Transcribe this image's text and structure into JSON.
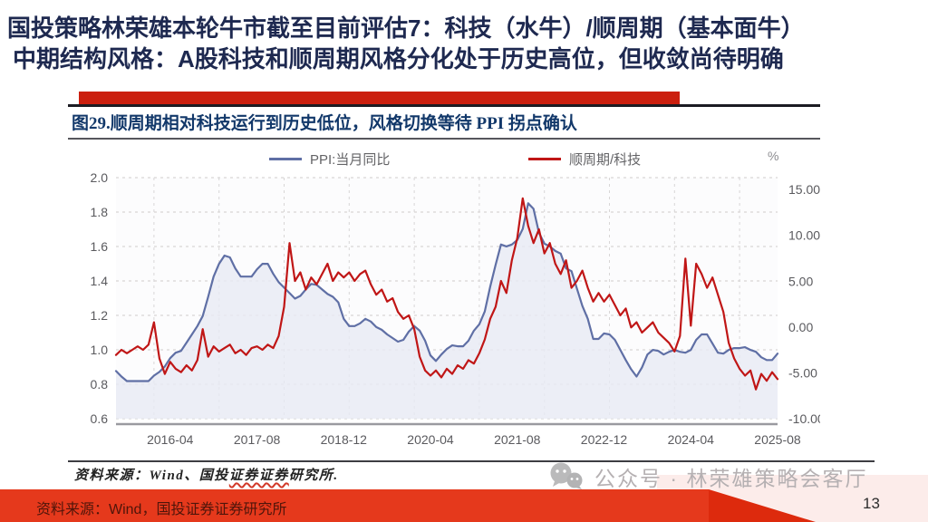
{
  "slide": {
    "title_line1": "国投策略林荣雄本轮牛市截至目前评估7：科技（水牛）/顺周期（基本面牛）",
    "title_line2": "中期结构风格：A股科技和顺周期风格分化处于历史高位，但收敛尚待明确",
    "watermark_text": "公众号 · 林荣雄策略会客厅",
    "footer_source": "资料来源：Wind，国投证券证券研究所",
    "page_number": "13",
    "accent_red": "#cb1f0e",
    "title_navy": "#1e2950",
    "footer_bar_red": "#e5391c"
  },
  "figure": {
    "caption": "图29.顺周期相对科技运行到历史低位，风格切换等待 PPI 拐点确认",
    "source_prefix": "资料来源：Wind、国投",
    "source_underlined": "证券证券",
    "source_suffix": "研究所.",
    "unit_label": "%"
  },
  "chart_data": {
    "type": "line",
    "title": "图29.顺周期相对科技运行到历史低位，风格切换等待 PPI 拐点确认",
    "x_start": "2015-06",
    "x_frequency": "monthly",
    "x_tick_labels": [
      "2016-04",
      "2017-08",
      "2018-12",
      "2020-04",
      "2021-08",
      "2022-12",
      "2024-04",
      "2025-08"
    ],
    "x_tick_indices": [
      10,
      26,
      42,
      58,
      74,
      90,
      106,
      122
    ],
    "x_grid_indices": [
      7,
      19,
      31,
      43,
      55,
      67,
      79,
      91,
      103,
      115
    ],
    "grid": true,
    "legend_position": "top",
    "left_axis": {
      "min": 0.6,
      "max": 2.0,
      "tick_values": [
        2.0,
        1.8,
        1.6,
        1.4,
        1.2,
        1.0,
        0.8,
        0.6
      ],
      "tick_labels": [
        "2.0",
        "1.8",
        "1.6",
        "1.4",
        "1.2",
        "1.0",
        "0.8",
        "0.6"
      ]
    },
    "right_axis": {
      "min": -10,
      "max": 16.3,
      "unit": "%",
      "tick_values": [
        15,
        10,
        5,
        0,
        -5,
        -10
      ],
      "tick_labels": [
        "15.00",
        "10.00",
        "5.00",
        "0.00",
        "-5.00",
        "-10.00"
      ]
    },
    "series": [
      {
        "name": "PPI:当月同比",
        "axis": "right",
        "color": "#5f6fa5",
        "fill": "#e7eaf4",
        "area": true,
        "values": [
          -4.8,
          -5.4,
          -5.9,
          -5.9,
          -5.9,
          -5.9,
          -5.9,
          -5.3,
          -4.9,
          -4.3,
          -3.4,
          -2.8,
          -2.6,
          -1.7,
          -0.8,
          0.1,
          1.2,
          3.3,
          5.5,
          6.9,
          7.8,
          7.6,
          6.4,
          5.5,
          5.5,
          5.5,
          6.3,
          6.9,
          6.9,
          5.8,
          4.9,
          4.3,
          3.7,
          3.1,
          3.4,
          4.1,
          4.7,
          4.6,
          4.1,
          3.6,
          3.3,
          2.7,
          0.9,
          0.1,
          0.1,
          0.4,
          0.9,
          0.6,
          0.0,
          -0.3,
          -0.8,
          -1.2,
          -1.6,
          -1.4,
          -0.5,
          0.1,
          -0.4,
          -1.5,
          -3.1,
          -3.7,
          -3.0,
          -2.4,
          -2.0,
          -2.1,
          -2.1,
          -1.5,
          -0.4,
          0.3,
          1.7,
          4.4,
          6.8,
          9.0,
          8.8,
          9.0,
          9.5,
          10.7,
          13.5,
          12.9,
          10.3,
          9.1,
          8.8,
          8.3,
          8.0,
          6.4,
          6.1,
          4.2,
          2.3,
          0.9,
          -1.3,
          -1.3,
          -0.7,
          -0.8,
          -1.4,
          -2.5,
          -3.6,
          -4.6,
          -5.4,
          -4.4,
          -3.0,
          -2.5,
          -2.6,
          -3.0,
          -2.7,
          -2.5,
          -2.7,
          -2.8,
          -2.5,
          -1.4,
          -0.8,
          -0.8,
          -1.8,
          -2.8,
          -2.9,
          -2.5,
          -2.3,
          -2.3,
          -2.2,
          -2.5,
          -2.7,
          -3.3,
          -3.6,
          -3.6,
          -2.9
        ]
      },
      {
        "name": "顺周期/科技",
        "axis": "left",
        "color": "#c01616",
        "area": false,
        "values": [
          0.97,
          1.0,
          0.98,
          1.0,
          1.02,
          1.0,
          1.03,
          1.16,
          0.95,
          0.86,
          0.93,
          0.89,
          0.87,
          0.91,
          0.88,
          0.94,
          1.12,
          0.96,
          1.02,
          0.99,
          1.01,
          1.03,
          0.98,
          1.0,
          0.97,
          1.01,
          1.02,
          1.0,
          1.03,
          1.01,
          1.08,
          1.25,
          1.62,
          1.4,
          1.45,
          1.35,
          1.42,
          1.38,
          1.44,
          1.5,
          1.4,
          1.45,
          1.42,
          1.45,
          1.4,
          1.44,
          1.46,
          1.38,
          1.32,
          1.35,
          1.28,
          1.3,
          1.22,
          1.18,
          1.2,
          1.12,
          0.96,
          0.88,
          0.85,
          0.88,
          0.84,
          0.89,
          0.86,
          0.91,
          0.89,
          0.94,
          0.92,
          0.98,
          1.06,
          1.18,
          1.25,
          1.4,
          1.33,
          1.52,
          1.65,
          1.88,
          1.72,
          1.62,
          1.7,
          1.56,
          1.62,
          1.5,
          1.44,
          1.52,
          1.36,
          1.4,
          1.46,
          1.36,
          1.28,
          1.33,
          1.28,
          1.32,
          1.26,
          1.2,
          1.24,
          1.13,
          1.16,
          1.1,
          1.13,
          1.16,
          1.1,
          1.07,
          1.04,
          0.99,
          1.08,
          1.53,
          1.14,
          1.5,
          1.44,
          1.36,
          1.42,
          1.32,
          1.22,
          1.04,
          0.95,
          0.89,
          0.85,
          0.88,
          0.77,
          0.86,
          0.82,
          0.87,
          0.83
        ]
      }
    ]
  }
}
